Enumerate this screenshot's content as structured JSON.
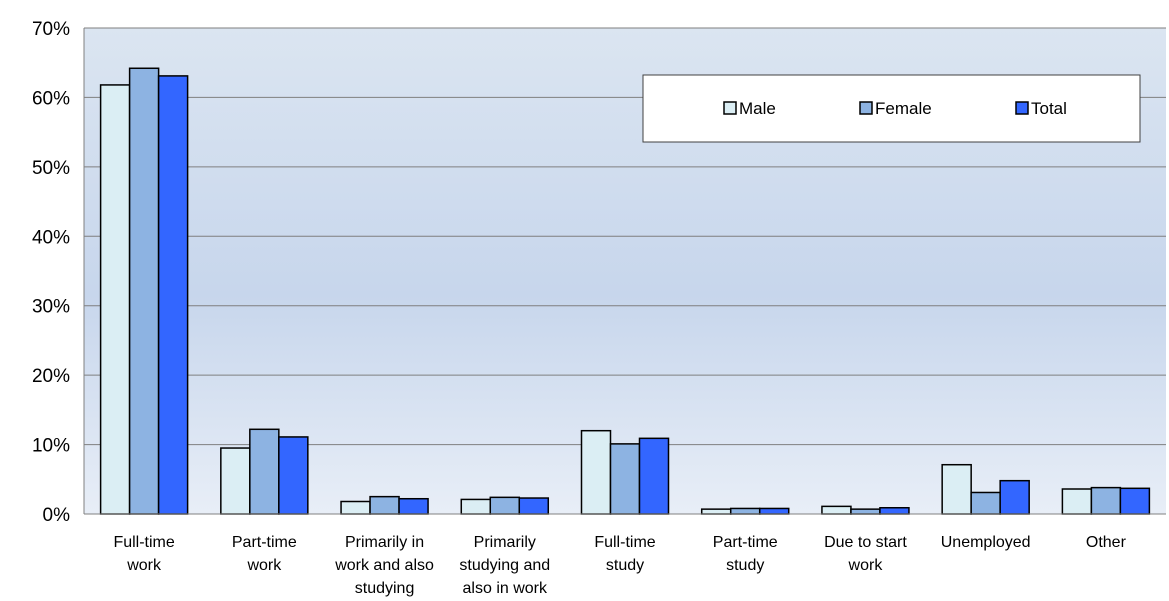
{
  "chart_data": {
    "type": "bar",
    "categories": [
      [
        "Full-time",
        "work"
      ],
      [
        "Part-time",
        "work"
      ],
      [
        "Primarily in",
        "work and also",
        "studying"
      ],
      [
        "Primarily",
        "studying and",
        "also in work"
      ],
      [
        "Full-time",
        "study"
      ],
      [
        "Part-time",
        "study"
      ],
      [
        "Due to start",
        "work"
      ],
      [
        "Unemployed"
      ],
      [
        "Other"
      ]
    ],
    "series": [
      {
        "name": "Male",
        "color": "#dbeef4",
        "values": [
          61.8,
          9.5,
          1.8,
          2.1,
          12.0,
          0.7,
          1.1,
          7.1,
          3.6
        ]
      },
      {
        "name": "Female",
        "color": "#8db3e2",
        "values": [
          64.2,
          12.2,
          2.5,
          2.4,
          10.1,
          0.8,
          0.7,
          3.1,
          3.8
        ]
      },
      {
        "name": "Total",
        "color": "#3366ff",
        "values": [
          63.1,
          11.1,
          2.2,
          2.3,
          10.9,
          0.8,
          0.9,
          4.8,
          3.7
        ]
      }
    ],
    "ylim": [
      0,
      70
    ],
    "yticks": [
      0,
      10,
      20,
      30,
      40,
      50,
      60,
      70
    ],
    "ytick_labels": [
      "0%",
      "10%",
      "20%",
      "30%",
      "40%",
      "50%",
      "60%",
      "70%"
    ],
    "grid": true,
    "legend_position": "top-right",
    "title": "",
    "xlabel": "",
    "ylabel": ""
  }
}
